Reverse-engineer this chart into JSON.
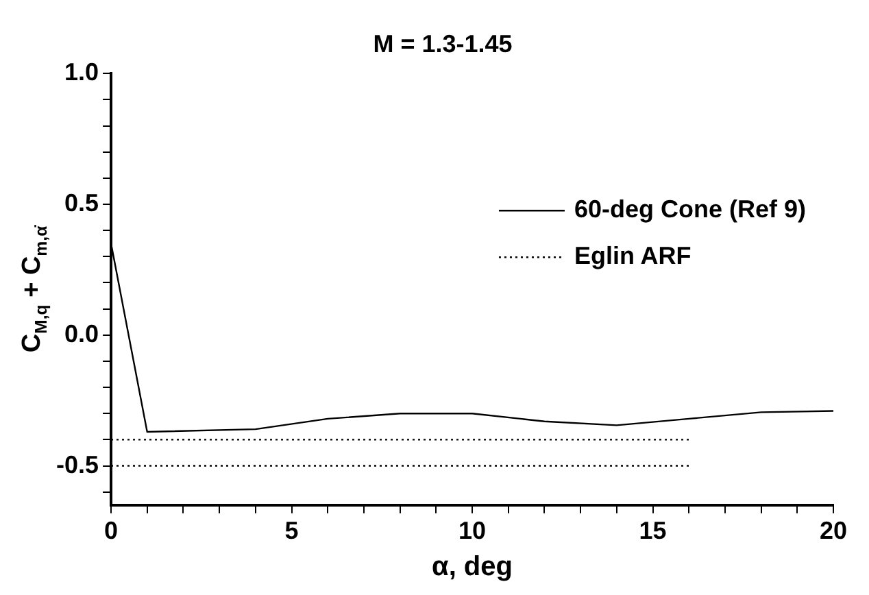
{
  "chart_data": {
    "type": "line",
    "title": "M = 1.3-1.45",
    "xlabel": "α, deg",
    "ylabel": "C$_{M,q}$ + C$_{m,α̇}$",
    "xlim": [
      0,
      20
    ],
    "ylim": [
      -0.65,
      1.0
    ],
    "xticks": [
      0,
      {
        "value": 1,
        "label": null
      },
      {
        "value": 2,
        "label": null
      },
      {
        "value": 3,
        "label": null
      },
      {
        "value": 4,
        "label": null
      },
      5,
      {
        "value": 6,
        "label": null
      },
      {
        "value": 7,
        "label": null
      },
      {
        "value": 8,
        "label": null
      },
      {
        "value": 9,
        "label": null
      },
      10,
      {
        "value": 11,
        "label": null
      },
      {
        "value": 12,
        "label": null
      },
      {
        "value": 13,
        "label": null
      },
      {
        "value": 14,
        "label": null
      },
      15,
      {
        "value": 16,
        "label": null
      },
      {
        "value": 17,
        "label": null
      },
      {
        "value": 18,
        "label": null
      },
      {
        "value": 19,
        "label": null
      },
      20
    ],
    "yticks": [
      {
        "value": -0.6,
        "label": null
      },
      {
        "value": -0.5,
        "label": "-0.5"
      },
      {
        "value": -0.4,
        "label": null
      },
      {
        "value": -0.3,
        "label": null
      },
      {
        "value": -0.2,
        "label": null
      },
      {
        "value": -0.1,
        "label": null
      },
      {
        "value": 0,
        "label": "0.0"
      },
      {
        "value": 0.1,
        "label": null
      },
      {
        "value": 0.2,
        "label": null
      },
      {
        "value": 0.3,
        "label": null
      },
      {
        "value": 0.4,
        "label": null
      },
      {
        "value": 0.5,
        "label": "0.5"
      },
      {
        "value": 0.6,
        "label": null
      },
      {
        "value": 0.7,
        "label": null
      },
      {
        "value": 0.8,
        "label": null
      },
      {
        "value": 0.9,
        "label": null
      },
      {
        "value": 1.0,
        "label": "1.0"
      }
    ],
    "grid": false,
    "legend": "top right",
    "marker": "none",
    "series": [
      {
        "name": "60-deg Cone (Ref 9)",
        "color": "#000000",
        "line_style": "solid",
        "x": [
          0,
          1,
          4,
          6,
          8,
          10,
          12,
          14,
          16,
          18,
          20
        ],
        "values": [
          0.35,
          -0.37,
          -0.36,
          -0.32,
          -0.3,
          -0.3,
          -0.33,
          -0.345,
          -0.32,
          -0.295,
          -0.29
        ]
      },
      {
        "name": "Eglin ARF",
        "color": "#000000",
        "line_style": "dotted",
        "x": [
          0,
          16
        ],
        "values": [
          -0.4,
          -0.4
        ]
      },
      {
        "color": "#000000",
        "line_style": "dotted",
        "x": [
          0,
          16
        ],
        "values": [
          -0.5,
          -0.5
        ]
      }
    ]
  }
}
